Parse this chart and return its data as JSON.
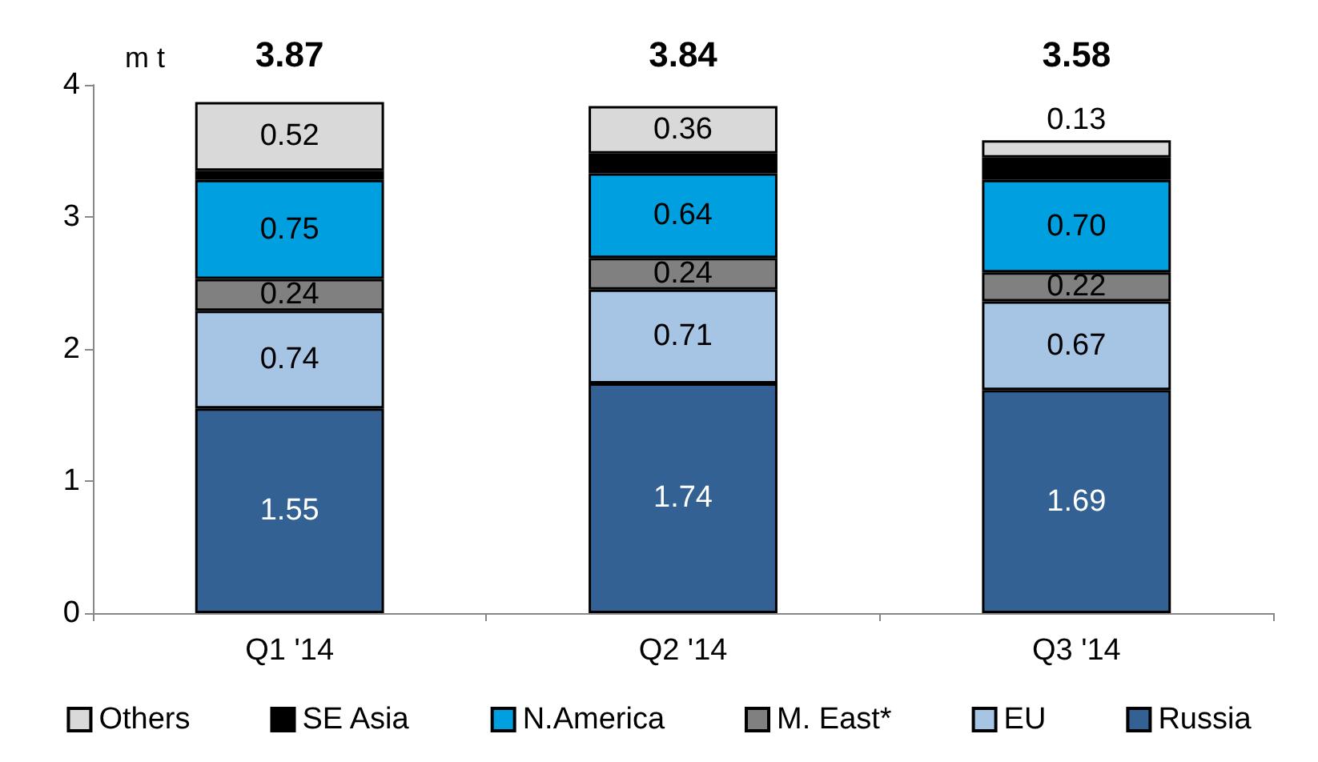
{
  "chart_data": {
    "type": "bar",
    "stacked": true,
    "ylabel": "m t",
    "categories": [
      "Q1 '14",
      "Q2 '14",
      "Q3 '14"
    ],
    "ylim": [
      0,
      4
    ],
    "yticks": [
      0,
      1,
      2,
      3,
      4
    ],
    "grid": false,
    "legend": "bottom",
    "totals": [
      "3.87",
      "3.84",
      "3.58"
    ],
    "series": [
      {
        "name": "Russia",
        "color": "#336193",
        "values": [
          1.55,
          1.74,
          1.69
        ],
        "value_labels": [
          "1.55",
          "1.74",
          "1.69"
        ]
      },
      {
        "name": "EU",
        "color": "#a6c4e4",
        "values": [
          0.74,
          0.71,
          0.67
        ],
        "value_labels": [
          "0.74",
          "0.71",
          "0.67"
        ]
      },
      {
        "name": "M. East*",
        "color": "#808080",
        "values": [
          0.24,
          0.24,
          0.22
        ],
        "value_labels": [
          "0.24",
          "0.24",
          "0.22"
        ]
      },
      {
        "name": "N.America",
        "color": "#00a0e0",
        "values": [
          0.75,
          0.64,
          0.7
        ],
        "value_labels": [
          "0.75",
          "0.64",
          "0.70"
        ]
      },
      {
        "name": "SE Asia",
        "color": "#000000",
        "values": [
          0.07,
          0.15,
          0.17
        ]
      },
      {
        "name": "Others",
        "color": "#d9d9d9",
        "values": [
          0.52,
          0.36,
          0.13
        ],
        "value_labels": [
          "0.52",
          "0.36",
          "0.13"
        ]
      }
    ]
  }
}
